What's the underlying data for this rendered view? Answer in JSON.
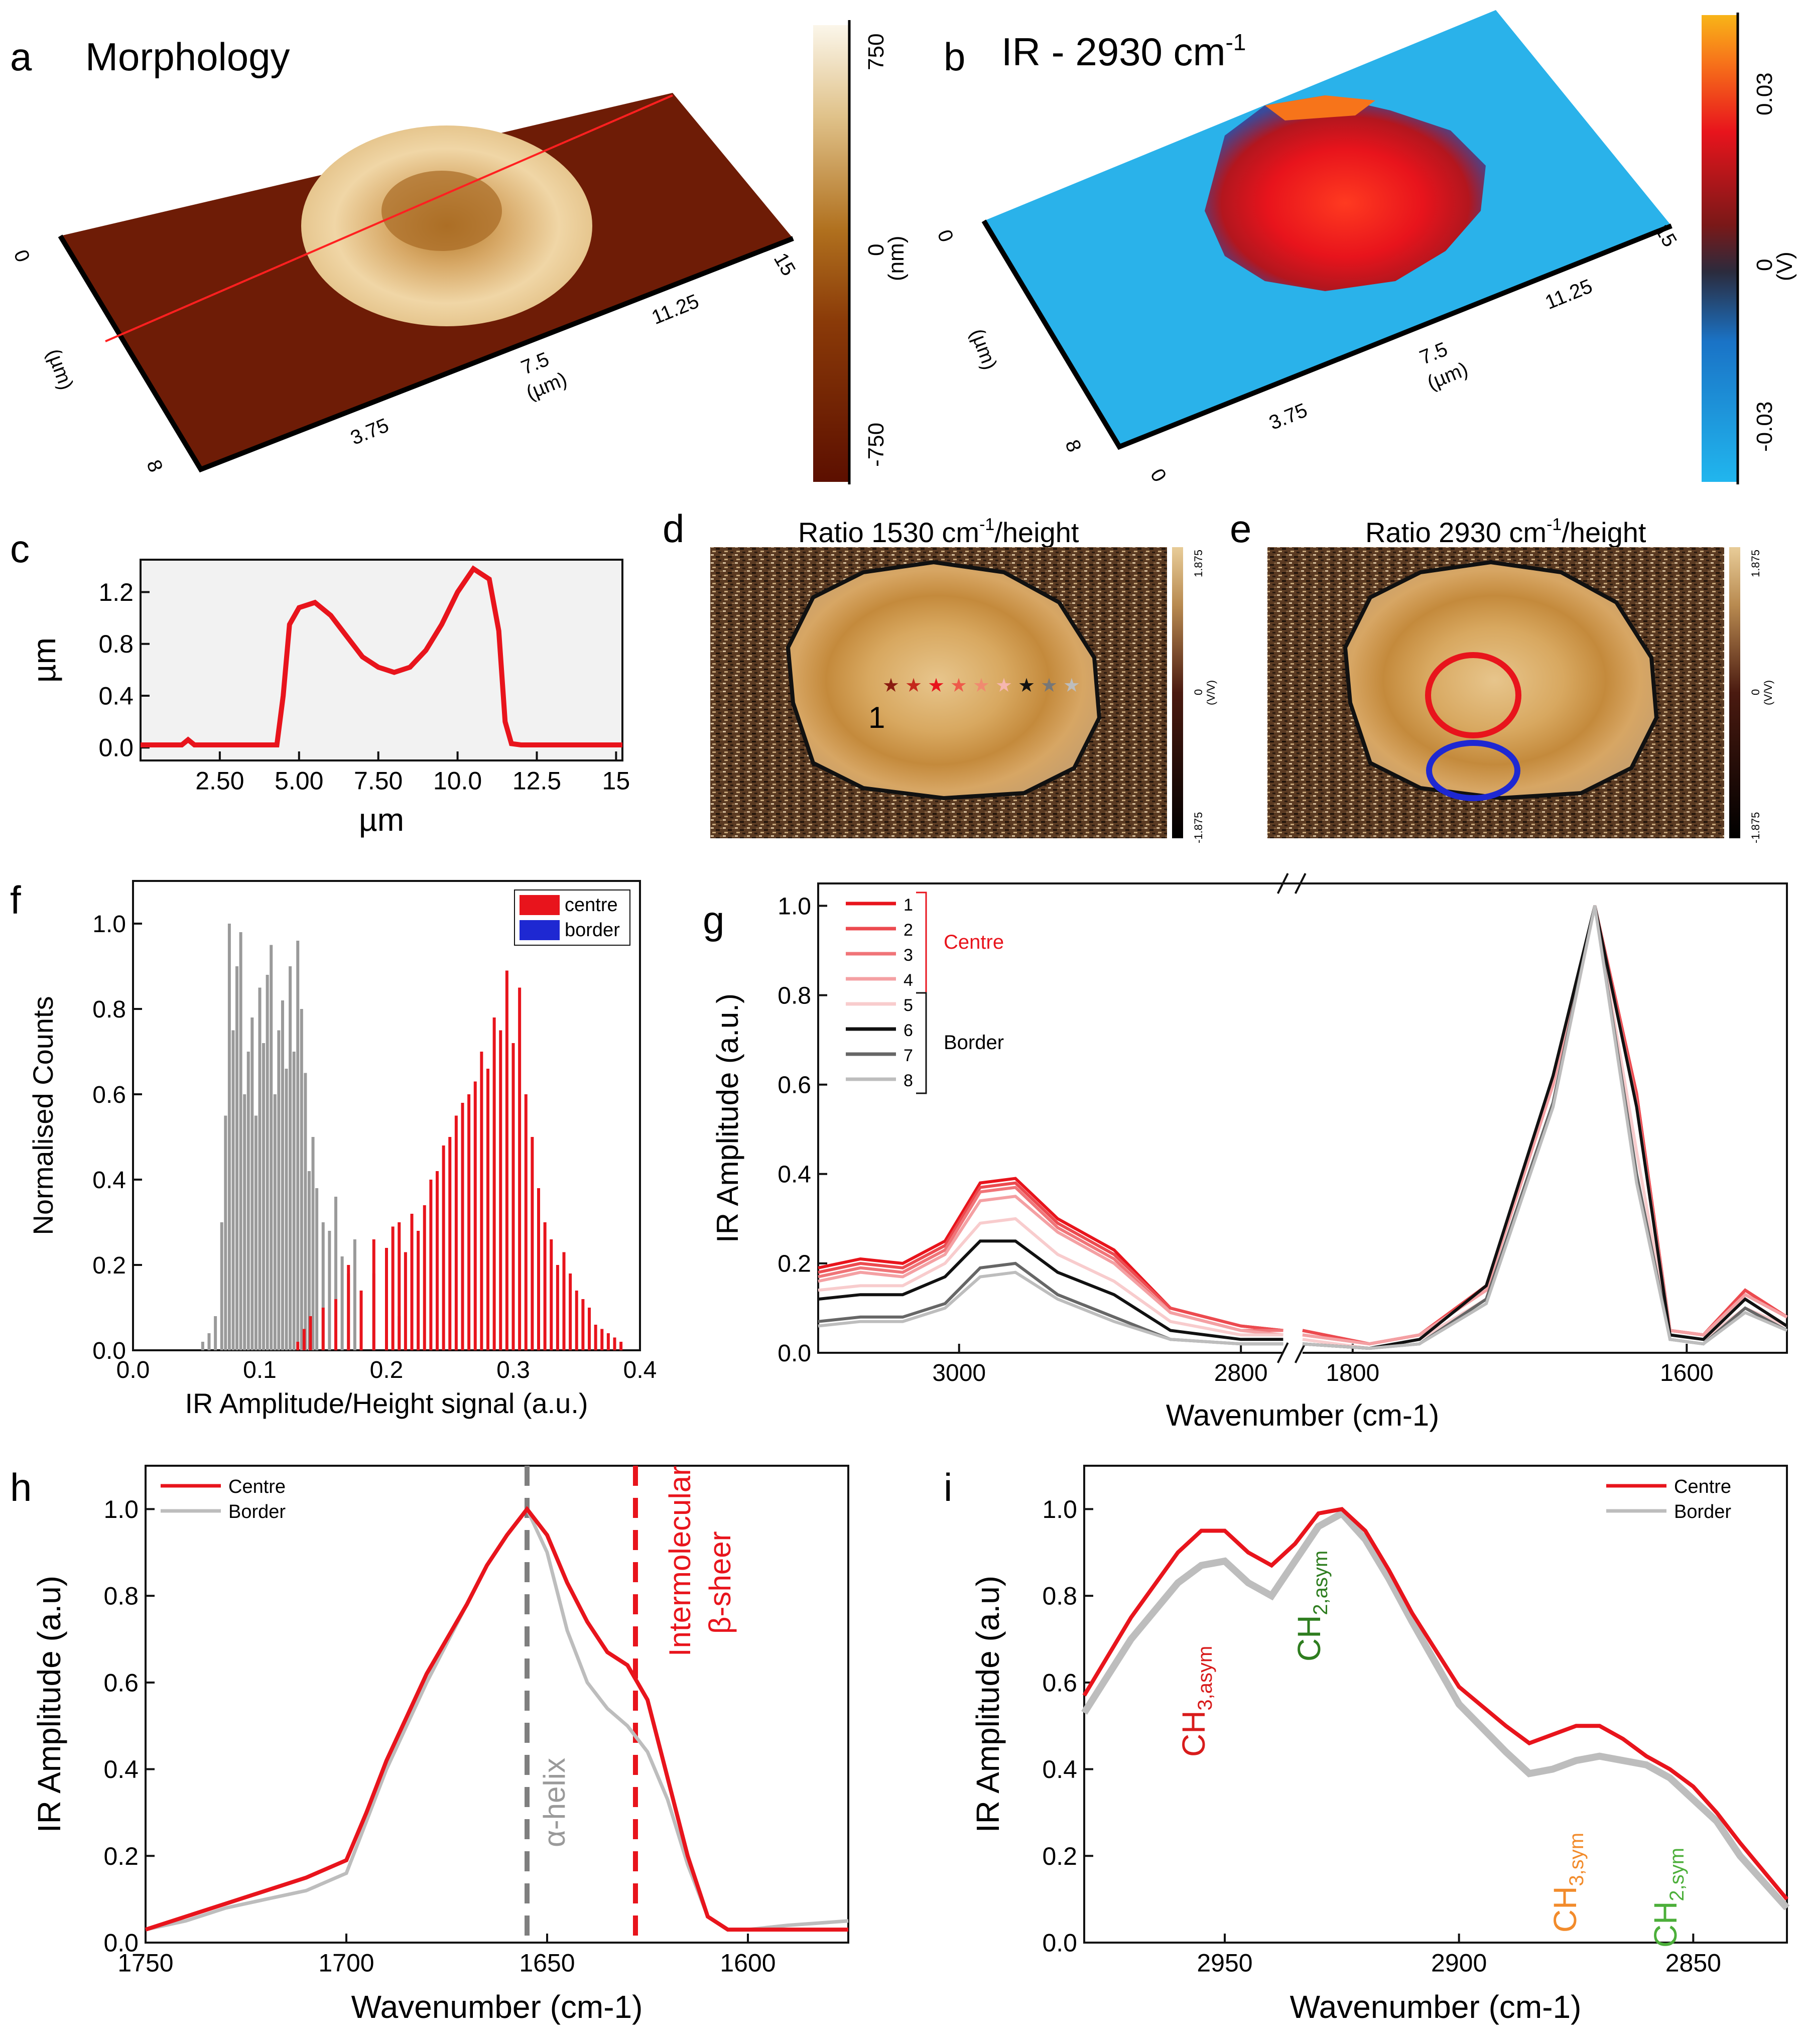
{
  "panels": {
    "a": {
      "letter": "a",
      "title": "Morphology",
      "colorbar_ticks": [
        "750",
        "0",
        "-750"
      ],
      "colorbar_unit": "(nm)",
      "axis_x_ticks": [
        "3.75",
        "7.5",
        "11.25",
        "15"
      ],
      "axis_x_unit": "(µm)",
      "axis_y_ticks": [
        "0",
        "8"
      ],
      "axis_y_unit": "(µm)"
    },
    "b": {
      "letter": "b",
      "title_main": "IR - 2930 cm",
      "title_sup": "-1",
      "colorbar_ticks": [
        "0.03",
        "0",
        "-0.03"
      ],
      "colorbar_unit": "(V)",
      "axis_x_ticks": [
        "0",
        "3.75",
        "7.5",
        "11.25",
        "15"
      ],
      "axis_x_unit": "(µm)",
      "axis_y_ticks": [
        "0",
        "8"
      ],
      "axis_y_unit": "(µm)"
    },
    "c": {
      "letter": "c"
    },
    "d": {
      "letter": "d",
      "title_main": "Ratio 1530 cm",
      "title_sup": "-1",
      "title_end": "/height",
      "colorbar_ticks": [
        "1.875",
        "0",
        "-1.875"
      ],
      "colorbar_unit": "(V/V)",
      "label_1": "1"
    },
    "e": {
      "letter": "e",
      "title_main": "Ratio 2930 cm",
      "title_sup": "-1",
      "title_end": "/height",
      "colorbar_ticks": [
        "1.875",
        "0",
        "-1.875"
      ],
      "colorbar_unit": "(V/V)"
    },
    "f": {
      "letter": "f"
    },
    "g": {
      "letter": "g",
      "group_centre": "Centre",
      "group_border": "Border"
    },
    "h": {
      "letter": "h",
      "annot_alpha": "α-helix",
      "annot_inter": "Intermolecular",
      "annot_beta": "β-sheer"
    },
    "i": {
      "letter": "i",
      "ch3_asym": "CH",
      "ch3_asym_sub": "3,asym",
      "ch2_asym": "CH",
      "ch2_asym_sub": "2,asym",
      "ch3_sym": "CH",
      "ch3_sym_sub": "3,sym",
      "ch2_sym": "CH",
      "ch2_sym_sub": "2,sym"
    }
  },
  "colors": {
    "centre": "#e8141c",
    "border": "#1e28d2",
    "grey": "#9a9a9a",
    "ch3_asym": "#d81b1b",
    "ch2_asym": "#2e7d1f",
    "ch3_sym": "#f28b2b",
    "ch2_sym": "#4caf3a"
  },
  "chart_data": [
    {
      "id": "c",
      "type": "line",
      "title": "",
      "xlabel": "µm",
      "ylabel": "µm",
      "xlim": [
        0,
        15.2
      ],
      "ylim": [
        -0.1,
        1.45
      ],
      "xticks": [
        "2.50",
        "5.00",
        "7.50",
        "10.0",
        "12.5",
        "15"
      ],
      "yticks": [
        "0.0",
        "0.4",
        "0.8",
        "1.2"
      ],
      "x": [
        0,
        1.3,
        1.5,
        1.7,
        4.3,
        4.5,
        4.7,
        5.0,
        5.5,
        6.0,
        6.5,
        7.0,
        7.5,
        8.0,
        8.5,
        9.0,
        9.5,
        10.0,
        10.5,
        11.0,
        11.3,
        11.5,
        11.7,
        12.0,
        15.2
      ],
      "y": [
        0.02,
        0.02,
        0.06,
        0.02,
        0.02,
        0.4,
        0.95,
        1.08,
        1.12,
        1.02,
        0.86,
        0.7,
        0.62,
        0.58,
        0.62,
        0.75,
        0.95,
        1.2,
        1.38,
        1.3,
        0.9,
        0.2,
        0.03,
        0.02,
        0.02
      ]
    },
    {
      "id": "f",
      "type": "bar",
      "title": "",
      "xlabel": "IR Amplitude/Height signal (a.u.)",
      "ylabel": "Normalised Counts",
      "xlim": [
        0,
        0.4
      ],
      "ylim": [
        0,
        1.1
      ],
      "xticks": [
        "0.0",
        "0.1",
        "0.2",
        "0.3",
        "0.4"
      ],
      "yticks": [
        "0.0",
        "0.2",
        "0.4",
        "0.6",
        "0.8",
        "1.0"
      ],
      "legend": [
        "centre",
        "border"
      ],
      "series": [
        {
          "name": "border",
          "color": "#9a9a9a",
          "x": [
            0.055,
            0.06,
            0.065,
            0.07,
            0.073,
            0.076,
            0.079,
            0.082,
            0.085,
            0.088,
            0.091,
            0.094,
            0.097,
            0.1,
            0.103,
            0.106,
            0.109,
            0.112,
            0.115,
            0.118,
            0.121,
            0.124,
            0.127,
            0.13,
            0.133,
            0.136,
            0.139,
            0.142,
            0.145,
            0.15,
            0.155,
            0.16,
            0.165,
            0.17,
            0.175,
            0.18,
            0.19,
            0.2,
            0.21,
            0.22
          ],
          "values": [
            0.02,
            0.04,
            0.08,
            0.3,
            0.55,
            1.0,
            0.75,
            0.9,
            0.98,
            0.6,
            0.7,
            0.78,
            0.55,
            0.85,
            0.72,
            0.88,
            0.95,
            0.6,
            0.75,
            0.82,
            0.66,
            0.9,
            0.7,
            0.96,
            0.8,
            0.65,
            0.42,
            0.5,
            0.38,
            0.3,
            0.28,
            0.36,
            0.22,
            0.18,
            0.26,
            0.14,
            0.18,
            0.12,
            0.08,
            0.04
          ]
        },
        {
          "name": "centre",
          "color": "#e8141c",
          "x": [
            0.13,
            0.135,
            0.14,
            0.15,
            0.16,
            0.17,
            0.18,
            0.19,
            0.2,
            0.205,
            0.21,
            0.215,
            0.22,
            0.225,
            0.23,
            0.235,
            0.24,
            0.245,
            0.25,
            0.255,
            0.26,
            0.265,
            0.27,
            0.275,
            0.28,
            0.285,
            0.29,
            0.295,
            0.3,
            0.305,
            0.31,
            0.315,
            0.32,
            0.325,
            0.33,
            0.335,
            0.34,
            0.345,
            0.35,
            0.355,
            0.36,
            0.365,
            0.37,
            0.375,
            0.38,
            0.385
          ],
          "values": [
            0.02,
            0.05,
            0.08,
            0.1,
            0.12,
            0.2,
            0.14,
            0.26,
            0.24,
            0.29,
            0.3,
            0.23,
            0.32,
            0.28,
            0.34,
            0.4,
            0.42,
            0.48,
            0.5,
            0.55,
            0.58,
            0.6,
            0.63,
            0.7,
            0.66,
            0.78,
            0.75,
            0.89,
            0.72,
            0.85,
            0.6,
            0.5,
            0.38,
            0.3,
            0.26,
            0.2,
            0.23,
            0.18,
            0.14,
            0.12,
            0.1,
            0.06,
            0.05,
            0.04,
            0.03,
            0.02
          ]
        }
      ]
    },
    {
      "id": "g",
      "type": "line",
      "title": "",
      "xlabel": "Wavenumber (cm-1)",
      "ylabel": "IR Amplitude (a.u.)",
      "ylim": [
        0,
        1.05
      ],
      "segments": [
        {
          "xlim": [
            3100,
            2770
          ],
          "xticks": [
            "3000",
            "2800"
          ]
        },
        {
          "xlim": [
            1830,
            1540
          ],
          "xticks": [
            "1800",
            "1600"
          ]
        }
      ],
      "yticks": [
        "0.0",
        "0.2",
        "0.4",
        "0.6",
        "0.8",
        "1.0"
      ],
      "legend": [
        "1",
        "2",
        "3",
        "4",
        "5",
        "6",
        "7",
        "8"
      ],
      "series": [
        {
          "name": "1",
          "color": "#e8141c",
          "seg1": [
            0.19,
            0.21,
            0.2,
            0.25,
            0.38,
            0.39,
            0.3,
            0.23,
            0.1,
            0.06,
            0.05
          ],
          "seg2": [
            0.05,
            0.02,
            0.04,
            0.15,
            0.6,
            1.0,
            0.58,
            0.05,
            0.04,
            0.14,
            0.08
          ]
        },
        {
          "name": "2",
          "color": "#ec4a4f",
          "seg1": [
            0.18,
            0.2,
            0.19,
            0.24,
            0.37,
            0.38,
            0.29,
            0.22,
            0.1,
            0.06,
            0.05
          ],
          "seg2": [
            0.05,
            0.02,
            0.04,
            0.15,
            0.6,
            1.0,
            0.58,
            0.05,
            0.04,
            0.14,
            0.08
          ]
        },
        {
          "name": "3",
          "color": "#f07478",
          "seg1": [
            0.17,
            0.19,
            0.18,
            0.23,
            0.36,
            0.37,
            0.28,
            0.21,
            0.09,
            0.05,
            0.05
          ],
          "seg2": [
            0.04,
            0.02,
            0.04,
            0.14,
            0.6,
            1.0,
            0.56,
            0.05,
            0.04,
            0.13,
            0.08
          ]
        },
        {
          "name": "4",
          "color": "#f4a0a3",
          "seg1": [
            0.16,
            0.18,
            0.17,
            0.22,
            0.34,
            0.35,
            0.27,
            0.2,
            0.09,
            0.05,
            0.04
          ],
          "seg2": [
            0.04,
            0.02,
            0.04,
            0.14,
            0.6,
            1.0,
            0.55,
            0.05,
            0.04,
            0.13,
            0.08
          ]
        },
        {
          "name": "5",
          "color": "#f8cccd",
          "seg1": [
            0.14,
            0.15,
            0.15,
            0.2,
            0.29,
            0.3,
            0.22,
            0.16,
            0.07,
            0.04,
            0.04
          ],
          "seg2": [
            0.03,
            0.01,
            0.03,
            0.12,
            0.55,
            1.0,
            0.45,
            0.04,
            0.03,
            0.1,
            0.06
          ]
        },
        {
          "name": "6",
          "color": "#111111",
          "seg1": [
            0.12,
            0.13,
            0.13,
            0.17,
            0.25,
            0.25,
            0.18,
            0.13,
            0.05,
            0.03,
            0.03
          ],
          "seg2": [
            0.02,
            0.01,
            0.03,
            0.15,
            0.62,
            1.0,
            0.55,
            0.04,
            0.03,
            0.12,
            0.06
          ]
        },
        {
          "name": "7",
          "color": "#666666",
          "seg1": [
            0.07,
            0.08,
            0.08,
            0.11,
            0.19,
            0.2,
            0.13,
            0.08,
            0.03,
            0.02,
            0.02
          ],
          "seg2": [
            0.02,
            0.01,
            0.02,
            0.12,
            0.56,
            1.0,
            0.4,
            0.03,
            0.02,
            0.1,
            0.05
          ]
        },
        {
          "name": "8",
          "color": "#bdbdbd",
          "seg1": [
            0.06,
            0.07,
            0.07,
            0.1,
            0.17,
            0.18,
            0.12,
            0.07,
            0.03,
            0.02,
            0.02
          ],
          "seg2": [
            0.02,
            0.01,
            0.02,
            0.11,
            0.55,
            1.0,
            0.38,
            0.03,
            0.02,
            0.09,
            0.05
          ]
        }
      ],
      "seg1_x": [
        3100,
        3070,
        3040,
        3010,
        2985,
        2960,
        2930,
        2890,
        2850,
        2800,
        2770
      ],
      "seg2_x": [
        1830,
        1790,
        1760,
        1720,
        1680,
        1655,
        1630,
        1610,
        1590,
        1565,
        1540
      ]
    },
    {
      "id": "h",
      "type": "line",
      "title": "",
      "xlabel": "Wavenumber (cm-1)",
      "ylabel": "IR Amplitude (a.u)",
      "xlim": [
        1750,
        1575
      ],
      "ylim": [
        0,
        1.1
      ],
      "xticks": [
        "1750",
        "1700",
        "1650",
        "1600"
      ],
      "yticks": [
        "0.0",
        "0.2",
        "0.4",
        "0.6",
        "0.8",
        "1.0"
      ],
      "legend": [
        "Centre",
        "Border"
      ],
      "x": [
        1750,
        1740,
        1730,
        1720,
        1710,
        1700,
        1695,
        1690,
        1685,
        1680,
        1675,
        1670,
        1665,
        1660,
        1655,
        1650,
        1645,
        1640,
        1635,
        1630,
        1625,
        1620,
        1615,
        1610,
        1605,
        1600,
        1590,
        1575
      ],
      "series": [
        {
          "name": "Centre",
          "color": "#e8141c",
          "values": [
            0.03,
            0.06,
            0.09,
            0.12,
            0.15,
            0.19,
            0.3,
            0.42,
            0.52,
            0.62,
            0.7,
            0.78,
            0.87,
            0.94,
            1.0,
            0.94,
            0.83,
            0.74,
            0.67,
            0.64,
            0.56,
            0.38,
            0.2,
            0.06,
            0.03,
            0.03,
            0.03,
            0.03
          ]
        },
        {
          "name": "Border",
          "color": "#bdbdbd",
          "values": [
            0.03,
            0.05,
            0.08,
            0.1,
            0.12,
            0.16,
            0.28,
            0.4,
            0.5,
            0.6,
            0.69,
            0.78,
            0.87,
            0.94,
            1.0,
            0.9,
            0.72,
            0.6,
            0.54,
            0.5,
            0.44,
            0.33,
            0.18,
            0.06,
            0.03,
            0.03,
            0.04,
            0.05
          ]
        }
      ],
      "vlines": [
        {
          "x": 1655,
          "color": "#7f7f7f"
        },
        {
          "x": 1628,
          "color": "#e8141c"
        }
      ]
    },
    {
      "id": "i",
      "type": "line",
      "title": "",
      "xlabel": "Wavenumber (cm-1)",
      "ylabel": "IR Amplitude (a.u)",
      "xlim": [
        2980,
        2830
      ],
      "ylim": [
        0,
        1.1
      ],
      "xticks": [
        "2950",
        "2900",
        "2850"
      ],
      "yticks": [
        "0.0",
        "0.2",
        "0.4",
        "0.6",
        "0.8",
        "1.0"
      ],
      "legend": [
        "Centre",
        "Border"
      ],
      "x": [
        2980,
        2970,
        2960,
        2955,
        2950,
        2945,
        2940,
        2935,
        2930,
        2925,
        2920,
        2915,
        2910,
        2900,
        2890,
        2885,
        2880,
        2875,
        2870,
        2865,
        2860,
        2855,
        2850,
        2845,
        2840,
        2830
      ],
      "series": [
        {
          "name": "Centre",
          "color": "#e8141c",
          "values": [
            0.57,
            0.75,
            0.9,
            0.95,
            0.95,
            0.9,
            0.87,
            0.92,
            0.99,
            1.0,
            0.95,
            0.86,
            0.76,
            0.59,
            0.5,
            0.46,
            0.48,
            0.5,
            0.5,
            0.47,
            0.43,
            0.4,
            0.36,
            0.3,
            0.23,
            0.1
          ]
        },
        {
          "name": "Border",
          "color": "#bdbdbd",
          "values": [
            0.53,
            0.7,
            0.83,
            0.87,
            0.88,
            0.83,
            0.8,
            0.88,
            0.96,
            0.99,
            0.93,
            0.84,
            0.74,
            0.55,
            0.44,
            0.39,
            0.4,
            0.42,
            0.43,
            0.42,
            0.41,
            0.38,
            0.33,
            0.28,
            0.2,
            0.08
          ]
        }
      ]
    }
  ]
}
